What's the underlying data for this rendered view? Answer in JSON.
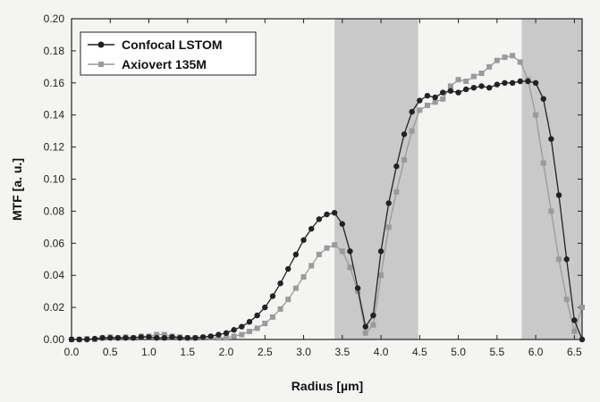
{
  "chart_data": {
    "type": "line",
    "xlabel": "Radius [µm]",
    "ylabel": "MTF [a. u.]",
    "xlim": [
      0.0,
      6.6
    ],
    "ylim": [
      0.0,
      0.2
    ],
    "x_ticks": [
      "0.0",
      "0.5",
      "1.0",
      "1.5",
      "2.0",
      "2.5",
      "3.0",
      "3.5",
      "4.0",
      "4.5",
      "5.0",
      "5.5",
      "6.0",
      "6.5"
    ],
    "y_ticks": [
      "0.00",
      "0.02",
      "0.04",
      "0.06",
      "0.08",
      "0.10",
      "0.12",
      "0.14",
      "0.16",
      "0.18",
      "0.20"
    ],
    "grid": false,
    "legend_position": "top-left",
    "shaded_regions": [
      [
        3.4,
        4.48
      ],
      [
        5.82,
        6.6
      ]
    ],
    "series": [
      {
        "name": "Confocal LSTOM",
        "color": "#222222",
        "marker": "circle",
        "points": [
          [
            0.0,
            0.0
          ],
          [
            0.1,
            0.0
          ],
          [
            0.2,
            0.0
          ],
          [
            0.3,
            0.0005
          ],
          [
            0.4,
            0.001
          ],
          [
            0.5,
            0.001
          ],
          [
            0.6,
            0.001
          ],
          [
            0.7,
            0.001
          ],
          [
            0.8,
            0.001
          ],
          [
            0.9,
            0.0015
          ],
          [
            1.0,
            0.0015
          ],
          [
            1.1,
            0.001
          ],
          [
            1.2,
            0.001
          ],
          [
            1.3,
            0.0015
          ],
          [
            1.4,
            0.001
          ],
          [
            1.5,
            0.001
          ],
          [
            1.6,
            0.001
          ],
          [
            1.7,
            0.0015
          ],
          [
            1.8,
            0.002
          ],
          [
            1.9,
            0.003
          ],
          [
            2.0,
            0.004
          ],
          [
            2.1,
            0.006
          ],
          [
            2.2,
            0.008
          ],
          [
            2.3,
            0.011
          ],
          [
            2.4,
            0.015
          ],
          [
            2.5,
            0.02
          ],
          [
            2.6,
            0.027
          ],
          [
            2.7,
            0.035
          ],
          [
            2.8,
            0.044
          ],
          [
            2.9,
            0.053
          ],
          [
            3.0,
            0.062
          ],
          [
            3.1,
            0.069
          ],
          [
            3.2,
            0.075
          ],
          [
            3.3,
            0.078
          ],
          [
            3.4,
            0.079
          ],
          [
            3.5,
            0.072
          ],
          [
            3.6,
            0.055
          ],
          [
            3.7,
            0.032
          ],
          [
            3.8,
            0.008
          ],
          [
            3.9,
            0.015
          ],
          [
            4.0,
            0.055
          ],
          [
            4.1,
            0.085
          ],
          [
            4.2,
            0.108
          ],
          [
            4.3,
            0.128
          ],
          [
            4.4,
            0.142
          ],
          [
            4.5,
            0.149
          ],
          [
            4.6,
            0.152
          ],
          [
            4.7,
            0.151
          ],
          [
            4.8,
            0.154
          ],
          [
            4.9,
            0.155
          ],
          [
            5.0,
            0.154
          ],
          [
            5.1,
            0.156
          ],
          [
            5.2,
            0.157
          ],
          [
            5.3,
            0.158
          ],
          [
            5.4,
            0.157
          ],
          [
            5.5,
            0.159
          ],
          [
            5.6,
            0.16
          ],
          [
            5.7,
            0.16
          ],
          [
            5.8,
            0.161
          ],
          [
            5.9,
            0.161
          ],
          [
            6.0,
            0.16
          ],
          [
            6.1,
            0.15
          ],
          [
            6.2,
            0.125
          ],
          [
            6.3,
            0.09
          ],
          [
            6.4,
            0.05
          ],
          [
            6.5,
            0.012
          ],
          [
            6.6,
            0.0
          ]
        ]
      },
      {
        "name": "Axiovert 135M",
        "color": "#9a9a9a",
        "marker": "square",
        "points": [
          [
            0.0,
            0.0
          ],
          [
            0.1,
            0.0
          ],
          [
            0.2,
            0.0005
          ],
          [
            0.3,
            0.0
          ],
          [
            0.4,
            0.001
          ],
          [
            0.5,
            0.0015
          ],
          [
            0.6,
            0.001
          ],
          [
            0.7,
            0.0015
          ],
          [
            0.8,
            0.001
          ],
          [
            0.9,
            0.002
          ],
          [
            1.0,
            0.002
          ],
          [
            1.1,
            0.003
          ],
          [
            1.2,
            0.003
          ],
          [
            1.3,
            0.002
          ],
          [
            1.4,
            0.0015
          ],
          [
            1.5,
            0.001
          ],
          [
            1.6,
            0.001
          ],
          [
            1.7,
            0.001
          ],
          [
            1.8,
            0.0015
          ],
          [
            1.9,
            0.001
          ],
          [
            2.0,
            0.001
          ],
          [
            2.1,
            0.002
          ],
          [
            2.2,
            0.003
          ],
          [
            2.3,
            0.005
          ],
          [
            2.4,
            0.007
          ],
          [
            2.5,
            0.01
          ],
          [
            2.6,
            0.014
          ],
          [
            2.7,
            0.019
          ],
          [
            2.8,
            0.025
          ],
          [
            2.9,
            0.032
          ],
          [
            3.0,
            0.039
          ],
          [
            3.1,
            0.046
          ],
          [
            3.2,
            0.053
          ],
          [
            3.3,
            0.057
          ],
          [
            3.4,
            0.059
          ],
          [
            3.5,
            0.055
          ],
          [
            3.6,
            0.045
          ],
          [
            3.7,
            0.03
          ],
          [
            3.8,
            0.004
          ],
          [
            3.9,
            0.009
          ],
          [
            4.0,
            0.04
          ],
          [
            4.1,
            0.07
          ],
          [
            4.2,
            0.092
          ],
          [
            4.3,
            0.112
          ],
          [
            4.4,
            0.13
          ],
          [
            4.5,
            0.143
          ],
          [
            4.6,
            0.146
          ],
          [
            4.7,
            0.148
          ],
          [
            4.8,
            0.15
          ],
          [
            4.9,
            0.158
          ],
          [
            5.0,
            0.162
          ],
          [
            5.1,
            0.161
          ],
          [
            5.2,
            0.164
          ],
          [
            5.3,
            0.166
          ],
          [
            5.4,
            0.17
          ],
          [
            5.5,
            0.174
          ],
          [
            5.6,
            0.176
          ],
          [
            5.7,
            0.177
          ],
          [
            5.8,
            0.173
          ],
          [
            5.9,
            0.162
          ],
          [
            6.0,
            0.14
          ],
          [
            6.1,
            0.11
          ],
          [
            6.2,
            0.08
          ],
          [
            6.3,
            0.05
          ],
          [
            6.4,
            0.025
          ],
          [
            6.5,
            0.005
          ],
          [
            6.6,
            0.02
          ]
        ]
      }
    ]
  }
}
